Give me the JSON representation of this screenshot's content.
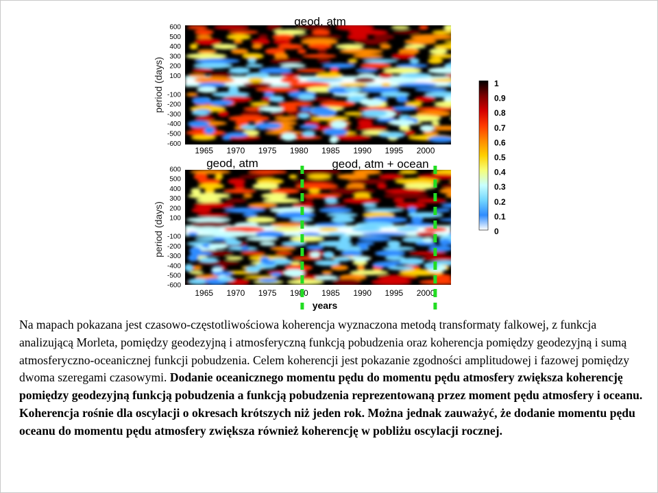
{
  "chart_data": {
    "type": "heatmap",
    "panels": [
      {
        "title": "geod, atm",
        "ylabel": "period (days)",
        "xlabel": "",
        "yticks": [
          "600",
          "500",
          "400",
          "300",
          "200",
          "100",
          "-100",
          "-200",
          "-300",
          "-400",
          "-500",
          "-600"
        ],
        "xticks": [
          "1965",
          "1970",
          "1975",
          "1980",
          "1985",
          "1990",
          "1995",
          "2000"
        ],
        "xlim": [
          1962,
          2004
        ],
        "ylim": [
          -650,
          650
        ],
        "yscale": "log-symmetric"
      },
      {
        "title_left": "geod, atm",
        "title_right": "geod, atm + ocean",
        "ylabel": "period (days)",
        "xlabel": "years",
        "yticks": [
          "600",
          "500",
          "400",
          "300",
          "200",
          "100",
          "-100",
          "-200",
          "-300",
          "-400",
          "-500",
          "-600"
        ],
        "xticks": [
          "1965",
          "1970",
          "1975",
          "1980",
          "1985",
          "1990",
          "1995",
          "2000"
        ],
        "xlim": [
          1962,
          2004
        ],
        "ylim": [
          -650,
          650
        ],
        "yscale": "log-symmetric",
        "markers": [
          1980.5,
          2001.5
        ]
      }
    ],
    "colorbar": {
      "ticks": [
        "1",
        "0.9",
        "0.8",
        "0.7",
        "0.6",
        "0.5",
        "0.4",
        "0.3",
        "0.2",
        "0.1",
        "0"
      ],
      "range": [
        0,
        1
      ],
      "colormap": [
        "#000000",
        "#7a0000",
        "#d40000",
        "#ff3a00",
        "#ff8a00",
        "#ffd000",
        "#f6ff7a",
        "#c8ffff",
        "#73d6ff",
        "#2f8cff",
        "#ffffff"
      ]
    },
    "marker_color": "#22dd22"
  },
  "caption": {
    "parts": [
      {
        "text": "Na mapach pokazana jest czasowo-częstotliwościowa koherencja wyznaczona metodą transformaty falkowej, z funkcja analizującą Morleta, pomiędzy geodezyjną i atmosferyczną funkcją pobudzenia oraz koherencja pomiędzy geodezyjną i sumą atmosferyczno-oceanicznej funkcji pobudzenia. Celem koherencji jest pokazanie zgodności amplitudowej i fazowej pomiędzy dwoma szeregami czasowymi. ",
        "bold": false
      },
      {
        "text": "Dodanie oceanicznego momentu pędu do momentu pędu atmosfery zwiększa koherencję pomiędzy geodezyjną funkcją pobudzenia a funkcją pobudzenia reprezentowaną przez moment pędu atmosfery i oceanu. Koherencja rośnie dla oscylacji o okresach krótszych niż jeden rok. Można jednak zauważyć, że dodanie momentu pędu oceanu do momentu pędu atmosfery zwiększa również koherencję w pobliżu oscylacji rocznej.",
        "bold": true
      }
    ]
  }
}
